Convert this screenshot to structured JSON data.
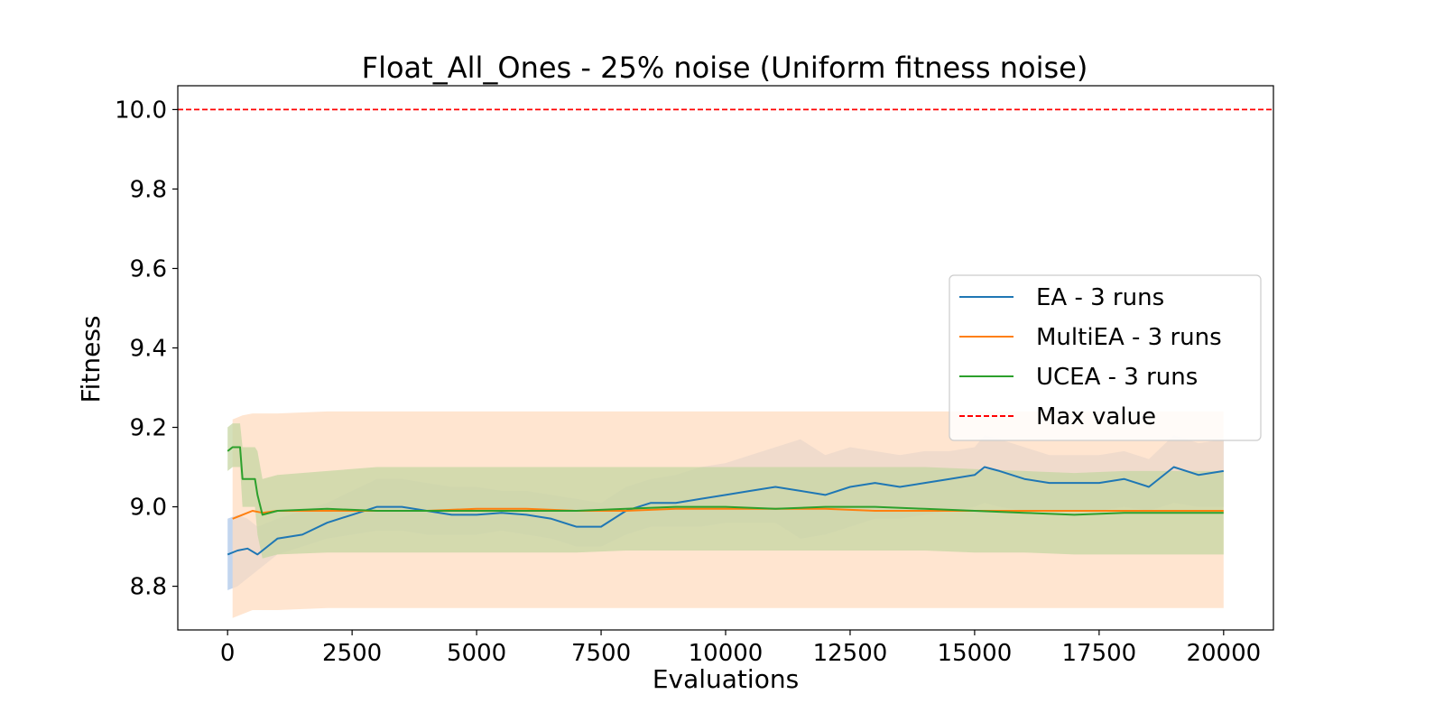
{
  "chart_data": {
    "type": "line",
    "title": "Float_All_Ones - 25% noise (Uniform fitness noise)",
    "xlabel": "Evaluations",
    "ylabel": "Fitness",
    "xlim": [
      -1000,
      21000
    ],
    "ylim": [
      8.69,
      10.06
    ],
    "xticks": [
      0,
      2500,
      5000,
      7500,
      10000,
      12500,
      15000,
      17500,
      20000
    ],
    "yticks": [
      8.8,
      9.0,
      9.2,
      9.4,
      9.6,
      9.8,
      10.0
    ],
    "grid": false,
    "legend": {
      "location": "center-right"
    },
    "series": [
      {
        "name": "EA - 3 runs",
        "color": "#1f77b4",
        "band_color": "#aec7e8",
        "x": [
          0,
          200,
          400,
          600,
          800,
          1000,
          1500,
          2000,
          2500,
          3000,
          3500,
          4000,
          4500,
          5000,
          5500,
          6000,
          6500,
          7000,
          7500,
          8000,
          8500,
          9000,
          9500,
          10000,
          10500,
          11000,
          11500,
          12000,
          12500,
          13000,
          13500,
          14000,
          14500,
          15000,
          15200,
          15500,
          16000,
          16500,
          17000,
          17500,
          18000,
          18500,
          19000,
          19500,
          20000
        ],
        "values": [
          8.88,
          8.89,
          8.895,
          8.88,
          8.9,
          8.92,
          8.93,
          8.96,
          8.98,
          9.0,
          9.0,
          8.99,
          8.98,
          8.98,
          8.985,
          8.98,
          8.97,
          8.95,
          8.95,
          8.99,
          9.01,
          9.01,
          9.02,
          9.03,
          9.04,
          9.05,
          9.04,
          9.03,
          9.05,
          9.06,
          9.05,
          9.06,
          9.07,
          9.08,
          9.1,
          9.09,
          9.07,
          9.06,
          9.06,
          9.06,
          9.07,
          9.05,
          9.1,
          9.08,
          9.09
        ],
        "lower": [
          8.79,
          8.8,
          8.82,
          8.84,
          8.86,
          8.88,
          8.9,
          8.92,
          8.93,
          8.94,
          8.94,
          8.93,
          8.93,
          8.93,
          8.94,
          8.93,
          8.92,
          8.9,
          8.9,
          8.93,
          8.95,
          8.95,
          8.95,
          8.96,
          8.96,
          8.96,
          8.92,
          8.93,
          8.95,
          8.97,
          8.97,
          8.98,
          8.99,
          9.0,
          9.01,
          9.0,
          8.99,
          8.99,
          8.99,
          8.99,
          9.0,
          8.99,
          9.01,
          9.0,
          9.0
        ],
        "upper": [
          8.97,
          8.98,
          8.97,
          8.95,
          8.96,
          8.97,
          8.99,
          9.01,
          9.04,
          9.07,
          9.07,
          9.06,
          9.05,
          9.05,
          9.04,
          9.04,
          9.03,
          9.02,
          9.01,
          9.05,
          9.07,
          9.08,
          9.1,
          9.11,
          9.13,
          9.15,
          9.17,
          9.13,
          9.15,
          9.14,
          9.13,
          9.14,
          9.14,
          9.15,
          9.18,
          9.17,
          9.15,
          9.13,
          9.13,
          9.13,
          9.14,
          9.12,
          9.18,
          9.16,
          9.17
        ]
      },
      {
        "name": "MultiEA - 3 runs",
        "color": "#ff7f0e",
        "band_color": "#ffdcc0",
        "x": [
          100,
          300,
          500,
          700,
          1000,
          2000,
          3000,
          4000,
          5000,
          6000,
          7000,
          8000,
          9000,
          10000,
          11000,
          12000,
          13000,
          14000,
          15000,
          16000,
          17000,
          18000,
          19000,
          20000
        ],
        "values": [
          8.97,
          8.98,
          8.99,
          8.985,
          8.99,
          8.99,
          8.99,
          8.99,
          8.995,
          8.995,
          8.99,
          8.99,
          8.995,
          8.995,
          8.995,
          8.995,
          8.99,
          8.99,
          8.99,
          8.99,
          8.99,
          8.99,
          8.99,
          8.99
        ],
        "lower": [
          8.72,
          8.73,
          8.74,
          8.74,
          8.74,
          8.745,
          8.745,
          8.745,
          8.745,
          8.745,
          8.745,
          8.745,
          8.745,
          8.745,
          8.745,
          8.745,
          8.745,
          8.745,
          8.745,
          8.745,
          8.745,
          8.745,
          8.745,
          8.745
        ],
        "upper": [
          9.22,
          9.23,
          9.235,
          9.235,
          9.235,
          9.24,
          9.24,
          9.24,
          9.24,
          9.24,
          9.24,
          9.24,
          9.24,
          9.24,
          9.24,
          9.24,
          9.24,
          9.24,
          9.24,
          9.24,
          9.24,
          9.24,
          9.24,
          9.24
        ]
      },
      {
        "name": "UCEA - 3 runs",
        "color": "#2ca02c",
        "band_color": "#c5d6a3",
        "x": [
          0,
          100,
          250,
          300,
          550,
          600,
          700,
          1000,
          2000,
          3000,
          4000,
          5000,
          6000,
          7000,
          8000,
          9000,
          10000,
          11000,
          12000,
          13000,
          14000,
          15000,
          16000,
          17000,
          18000,
          19000,
          20000
        ],
        "values": [
          9.14,
          9.15,
          9.15,
          9.07,
          9.07,
          9.03,
          8.98,
          8.99,
          8.995,
          8.99,
          8.99,
          8.99,
          8.99,
          8.99,
          8.995,
          9.0,
          9.0,
          8.995,
          9.0,
          9.0,
          8.995,
          8.99,
          8.985,
          8.98,
          8.985,
          8.985,
          8.985
        ],
        "lower": [
          9.09,
          9.1,
          9.1,
          9.0,
          9.0,
          8.93,
          8.87,
          8.88,
          8.885,
          8.885,
          8.885,
          8.885,
          8.885,
          8.885,
          8.89,
          8.89,
          8.89,
          8.89,
          8.89,
          8.89,
          8.89,
          8.885,
          8.885,
          8.88,
          8.88,
          8.88,
          8.88
        ],
        "upper": [
          9.2,
          9.21,
          9.21,
          9.15,
          9.15,
          9.14,
          9.07,
          9.08,
          9.09,
          9.1,
          9.1,
          9.1,
          9.1,
          9.1,
          9.1,
          9.1,
          9.1,
          9.1,
          9.1,
          9.1,
          9.1,
          9.095,
          9.09,
          9.085,
          9.09,
          9.09,
          9.09
        ]
      }
    ],
    "reference_line": {
      "name": "Max value",
      "y": 10.0,
      "color": "#ff0000",
      "style": "dashed"
    }
  }
}
